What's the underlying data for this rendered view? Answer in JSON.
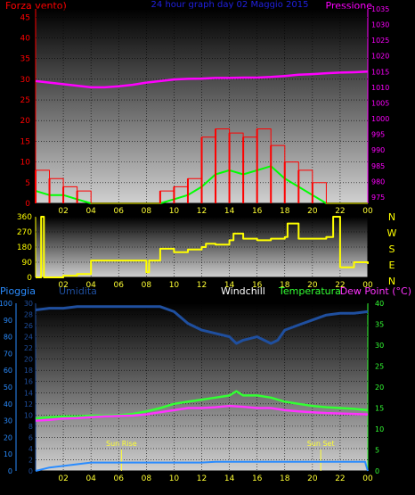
{
  "header": {
    "wind_label": "Forza vento)",
    "title": "24 hour graph day  02 Maggio 2015",
    "pressure_label": "Pressione"
  },
  "compass": [
    "N",
    "W",
    "S",
    "E",
    "N"
  ],
  "bottom_header": {
    "rain_label": "Pioggia",
    "humidity_label": "Umidita",
    "windchill_label": "Windchill",
    "temperature_label": "Temperatura",
    "dewpoint_label": "Dew Point (°C)"
  },
  "sun": {
    "rise_label": "Sun Rise",
    "set_label": "Sun Set",
    "rise_hour": 6.2,
    "set_hour": 20.6
  },
  "colors": {
    "wind": "#ff0000",
    "gust": "#00ff00",
    "pressure": "#ff00ff",
    "direction": "#ffff00",
    "humidity": "#1f4f9f",
    "temperature": "#33ff33",
    "dewpoint": "#ff33ff",
    "rain": "#2a8cff",
    "xtick": "#ffff33",
    "title": "#2020e0"
  },
  "chart_data": [
    {
      "type": "line",
      "title": "24 hour graph day  02 Maggio 2015",
      "x_ticks": [
        "02",
        "04",
        "06",
        "08",
        "10",
        "12",
        "14",
        "16",
        "18",
        "20",
        "22",
        "00"
      ],
      "y_left": {
        "label": "Forza vento)",
        "ticks": [
          0,
          5,
          10,
          15,
          20,
          25,
          30,
          35,
          40,
          45
        ],
        "ylim": [
          0,
          47
        ]
      },
      "y_right": {
        "label": "Pressione",
        "ticks": [
          975,
          980,
          985,
          990,
          995,
          1000,
          1005,
          1010,
          1015,
          1020,
          1025,
          1030,
          1035
        ],
        "ylim": [
          973,
          1035
        ]
      },
      "series": [
        {
          "axis": "right",
          "color": "pressure",
          "x": [
            0,
            1,
            2,
            3,
            4,
            5,
            6,
            7,
            8,
            9,
            10,
            11,
            12,
            13,
            14,
            15,
            16,
            17,
            18,
            19,
            20,
            21,
            22,
            23,
            24
          ],
          "values": [
            1012,
            1011.5,
            1011,
            1010.5,
            1010,
            1010,
            1010.3,
            1010.8,
            1011.5,
            1012,
            1012.5,
            1012.7,
            1012.8,
            1013,
            1013,
            1013.1,
            1013.1,
            1013.3,
            1013.6,
            1014,
            1014.2,
            1014.5,
            1014.7,
            1014.8,
            1015
          ]
        },
        {
          "axis": "left",
          "color": "gust",
          "x": [
            0,
            1,
            2,
            3,
            4,
            5,
            6,
            7,
            8,
            9,
            10,
            11,
            12,
            13,
            14,
            15,
            16,
            17,
            18,
            19,
            20,
            21,
            22,
            23,
            24
          ],
          "values": [
            3,
            2,
            2,
            1,
            0,
            0,
            0,
            0,
            0,
            0,
            1,
            2,
            4,
            7,
            8,
            7,
            8,
            9,
            6,
            4,
            2,
            0,
            0,
            0,
            0
          ]
        },
        {
          "axis": "left",
          "color": "wind",
          "style": "bars",
          "x": [
            0,
            1,
            2,
            3,
            4,
            5,
            6,
            7,
            8,
            9,
            10,
            11,
            12,
            13,
            14,
            15,
            16,
            17,
            18,
            19,
            20,
            21,
            22,
            23,
            24
          ],
          "values": [
            8,
            6,
            4,
            3,
            0,
            0,
            0,
            0,
            0,
            3,
            4,
            6,
            16,
            18,
            17,
            16,
            18,
            14,
            10,
            8,
            5,
            0,
            0,
            0,
            0
          ]
        }
      ]
    },
    {
      "type": "line",
      "y_ticks": [
        0,
        90,
        180,
        270,
        360
      ],
      "ylim": [
        0,
        360
      ],
      "series": [
        {
          "color": "direction",
          "x": [
            0,
            0.4,
            0.6,
            1,
            2,
            3,
            4,
            5,
            6,
            7,
            8,
            8.2,
            9,
            9.4,
            10,
            11,
            12,
            12.3,
            13,
            14,
            14.3,
            15,
            16,
            17,
            18,
            18.2,
            19,
            20,
            21,
            21.5,
            22,
            23,
            24
          ],
          "values": [
            0,
            360,
            0,
            0,
            10,
            20,
            100,
            100,
            100,
            100,
            30,
            100,
            170,
            170,
            150,
            165,
            180,
            200,
            195,
            220,
            260,
            230,
            220,
            230,
            240,
            320,
            230,
            230,
            240,
            360,
            60,
            90,
            80
          ]
        }
      ]
    },
    {
      "type": "line",
      "y_left": {
        "label": "Pioggia",
        "ticks": [
          0,
          10,
          20,
          30,
          40,
          50,
          60,
          70,
          80,
          90,
          100
        ],
        "ylim": [
          0,
          100
        ]
      },
      "y_left2": {
        "label": "Umidita",
        "ticks": [
          0,
          2,
          4,
          6,
          8,
          10,
          12,
          14,
          16,
          18,
          20,
          22,
          24,
          26,
          28,
          30
        ],
        "ylim": [
          0,
          30
        ]
      },
      "y_right": {
        "label": "Dew Point (°C)",
        "ticks": [
          0,
          5,
          10,
          15,
          20,
          25,
          30,
          35,
          40
        ],
        "ylim": [
          0,
          40
        ]
      },
      "series": [
        {
          "name": "Umidita",
          "color": "humidity",
          "x": [
            0,
            1,
            2,
            3,
            4,
            5,
            6,
            7,
            8,
            9,
            10,
            11,
            12,
            13,
            14,
            14.5,
            15,
            16,
            17,
            17.5,
            18,
            19,
            20,
            21,
            22,
            23,
            24
          ],
          "values": [
            96,
            97,
            97,
            98,
            98,
            98,
            98,
            98,
            98,
            98,
            95,
            88,
            84,
            82,
            80,
            76,
            78,
            80,
            76,
            78,
            84,
            87,
            90,
            93,
            94,
            94,
            95
          ]
        },
        {
          "name": "Temperatura",
          "color": "temperature",
          "x": [
            0,
            1,
            2,
            3,
            4,
            5,
            6,
            7,
            8,
            9,
            10,
            11,
            12,
            13,
            14,
            14.5,
            15,
            16,
            17,
            18,
            19,
            20,
            21,
            22,
            23,
            24
          ],
          "values": [
            12.5,
            12.8,
            13,
            13,
            13.2,
            13.2,
            13.3,
            13.6,
            14.2,
            15,
            16,
            16.5,
            17,
            17.5,
            18,
            19,
            18,
            18,
            17.5,
            16.5,
            16,
            15.5,
            15.2,
            15,
            14.8,
            14.5
          ]
        },
        {
          "name": "Dew Point",
          "color": "dewpoint",
          "x": [
            0,
            1,
            2,
            3,
            4,
            5,
            6,
            7,
            8,
            9,
            10,
            11,
            12,
            13,
            14,
            15,
            16,
            17,
            18,
            19,
            20,
            21,
            22,
            23,
            24
          ],
          "values": [
            12,
            12.2,
            12.5,
            12.6,
            12.8,
            13,
            13.1,
            13.2,
            13.5,
            14,
            14.5,
            15,
            15,
            15.2,
            15.5,
            15.3,
            15,
            15,
            14.5,
            14.2,
            14,
            13.8,
            13.7,
            13.6,
            13.5
          ]
        },
        {
          "name": "Pioggia",
          "color": "rain",
          "x": [
            0,
            1,
            2,
            3,
            4,
            5,
            6,
            7,
            8,
            9,
            10,
            11,
            12,
            13,
            14,
            15,
            16,
            17,
            18,
            19,
            20,
            21,
            22,
            23,
            23.8,
            24
          ],
          "values": [
            0,
            2,
            3,
            4,
            5,
            5,
            5,
            5,
            5,
            5,
            5,
            5,
            5,
            5.5,
            5.5,
            5.5,
            5.5,
            5.5,
            5.5,
            5.5,
            5.5,
            5.5,
            5.5,
            5.5,
            5.5,
            0
          ]
        }
      ]
    }
  ]
}
